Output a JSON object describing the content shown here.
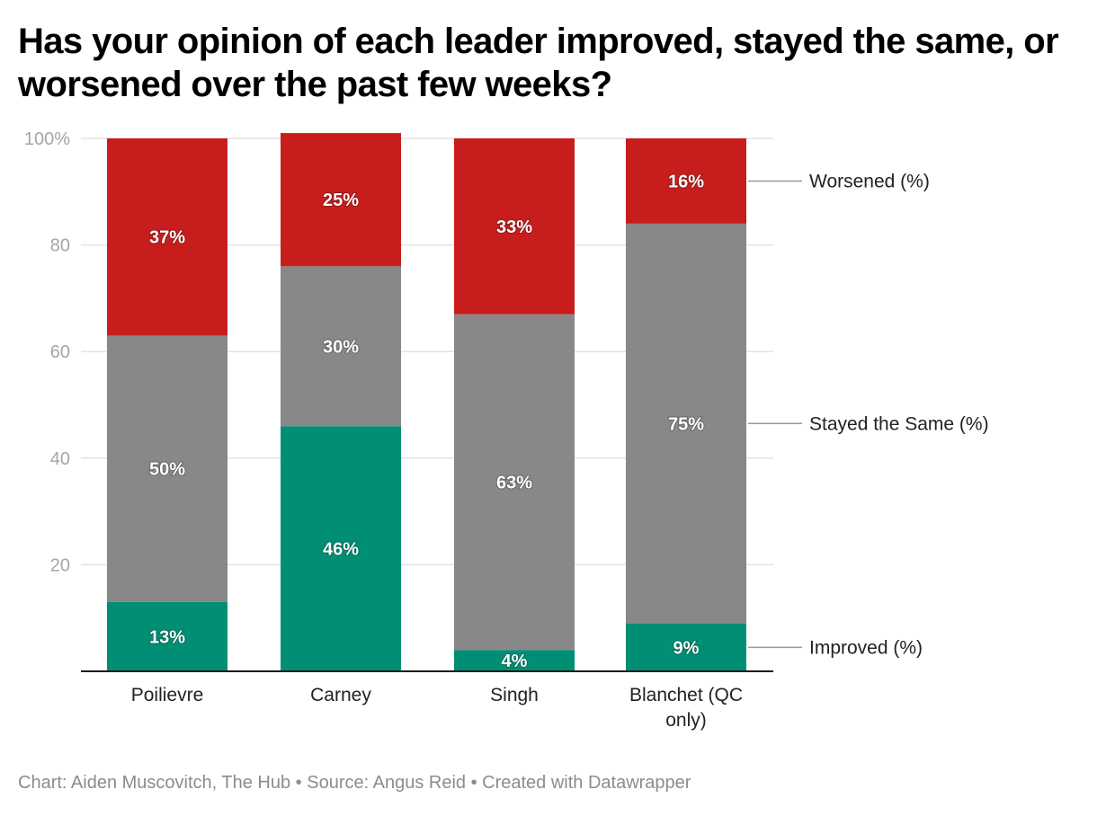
{
  "chart_data": {
    "type": "bar",
    "stacked": true,
    "title": "Has your opinion of each leader improved, stayed the same, or worsened over the past few weeks?",
    "xlabel": "",
    "ylabel": "",
    "ylim": [
      0,
      100
    ],
    "yticks": [
      0,
      20,
      40,
      60,
      80,
      100
    ],
    "ytick_labels": [
      "",
      "20",
      "40",
      "60",
      "80",
      "100%"
    ],
    "grid": true,
    "legend_placement": "right (direct labels)",
    "categories": [
      "Poilievre",
      "Carney",
      "Singh",
      "Blanchet (QC only)"
    ],
    "category_lines": [
      [
        "Poilievre"
      ],
      [
        "Carney"
      ],
      [
        "Singh"
      ],
      [
        "Blanchet (QC",
        "only)"
      ]
    ],
    "series": [
      {
        "name": "Improved (%)",
        "color": "#008f74",
        "values": [
          13,
          46,
          4,
          9
        ]
      },
      {
        "name": "Stayed the Same (%)",
        "color": "#888888",
        "values": [
          50,
          30,
          63,
          75
        ]
      },
      {
        "name": "Worsened (%)",
        "color": "#c71e1d",
        "values": [
          37,
          25,
          33,
          16
        ]
      }
    ],
    "value_label_suffix": "%"
  },
  "footer": {
    "text": "Chart: Aiden Muscovitch, The Hub • Source: Angus Reid • Created with Datawrapper"
  }
}
